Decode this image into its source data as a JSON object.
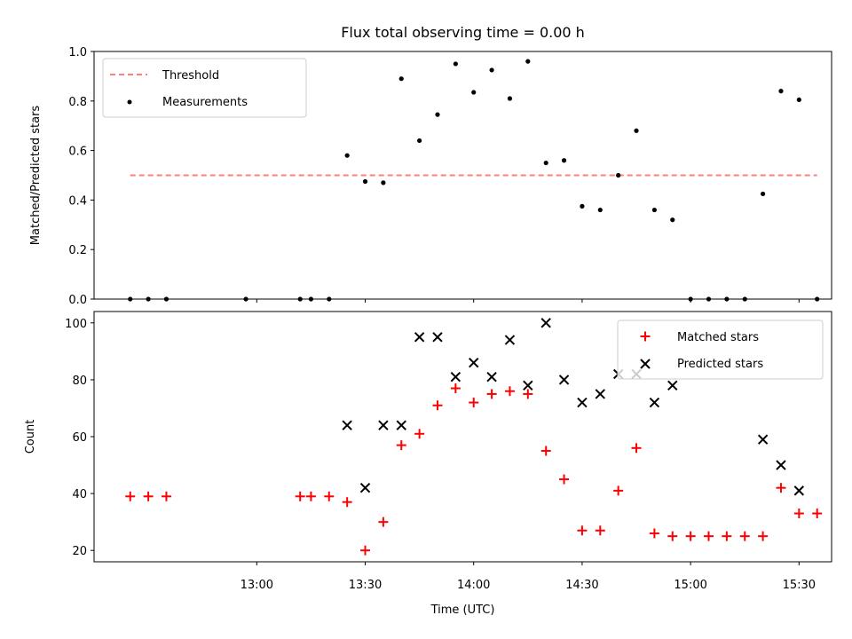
{
  "chart_data": [
    {
      "type": "scatter",
      "title": "Flux total observing time = 0.00 h",
      "xlabel": "",
      "ylabel": "Matched/Predicted stars",
      "ylim": [
        0,
        1.0
      ],
      "yticks": [
        "0.0",
        "0.2",
        "0.4",
        "0.6",
        "0.8",
        "1.0"
      ],
      "legend": "upper-left",
      "threshold": {
        "name": "Threshold",
        "value": 0.5,
        "x_start": "12:25",
        "x_end": "15:35",
        "color": "#ff7f7f"
      },
      "series": [
        {
          "name": "Measurements",
          "color": "#000000",
          "x": [
            "12:25",
            "12:30",
            "12:35",
            "12:57",
            "13:12",
            "13:15",
            "13:20",
            "13:25",
            "13:30",
            "13:35",
            "13:40",
            "13:45",
            "13:50",
            "13:55",
            "14:00",
            "14:05",
            "14:10",
            "14:15",
            "14:20",
            "14:25",
            "14:30",
            "14:35",
            "14:40",
            "14:45",
            "14:50",
            "14:55",
            "15:00",
            "15:05",
            "15:10",
            "15:15",
            "15:20",
            "15:25",
            "15:30",
            "15:35"
          ],
          "y": [
            0,
            0,
            0,
            0,
            0,
            0,
            0,
            0.58,
            0.475,
            0.47,
            0.89,
            0.64,
            0.745,
            0.95,
            0.835,
            0.925,
            0.81,
            0.96,
            0.55,
            0.56,
            0.375,
            0.36,
            0.5,
            0.68,
            0.36,
            0.32,
            0,
            0,
            0,
            0,
            0.425,
            0.84,
            0.805,
            0
          ]
        }
      ]
    },
    {
      "type": "scatter",
      "title": "",
      "xlabel": "Time (UTC)",
      "ylabel": "Count",
      "ylim": [
        16,
        104
      ],
      "yticks": [
        "20",
        "40",
        "60",
        "80",
        "100"
      ],
      "xticks": [
        "13:00",
        "13:30",
        "14:00",
        "14:30",
        "15:00",
        "15:30"
      ],
      "legend": "upper-right",
      "series": [
        {
          "name": "Matched stars",
          "marker": "+",
          "color": "#ff0000",
          "x": [
            "12:25",
            "12:30",
            "12:35",
            "13:12",
            "13:15",
            "13:20",
            "13:25",
            "13:30",
            "13:35",
            "13:40",
            "13:45",
            "13:50",
            "13:55",
            "14:00",
            "14:05",
            "14:10",
            "14:15",
            "14:20",
            "14:25",
            "14:30",
            "14:35",
            "14:40",
            "14:45",
            "14:50",
            "14:55",
            "15:00",
            "15:05",
            "15:10",
            "15:15",
            "15:20",
            "15:25",
            "15:30",
            "15:35"
          ],
          "y": [
            39,
            39,
            39,
            39,
            39,
            39,
            37,
            20,
            30,
            57,
            61,
            71,
            77,
            72,
            75,
            76,
            75,
            55,
            45,
            27,
            27,
            41,
            56,
            26,
            25,
            25,
            25,
            25,
            25,
            25,
            42,
            33,
            33
          ]
        },
        {
          "name": "Predicted stars",
          "marker": "x",
          "color": "#000000",
          "x": [
            "13:25",
            "13:30",
            "13:35",
            "13:40",
            "13:45",
            "13:50",
            "13:55",
            "14:00",
            "14:05",
            "14:10",
            "14:15",
            "14:20",
            "14:25",
            "14:30",
            "14:35",
            "14:40",
            "14:45",
            "14:50",
            "14:55",
            "15:20",
            "15:25",
            "15:30"
          ],
          "y": [
            64,
            42,
            64,
            64,
            95,
            95,
            81,
            86,
            81,
            94,
            78,
            100,
            80,
            72,
            75,
            82,
            82,
            72,
            78,
            59,
            50,
            41
          ]
        }
      ]
    }
  ]
}
